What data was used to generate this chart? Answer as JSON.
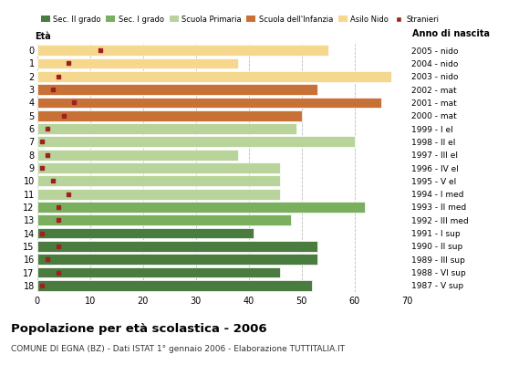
{
  "ages": [
    0,
    1,
    2,
    3,
    4,
    5,
    6,
    7,
    8,
    9,
    10,
    11,
    12,
    13,
    14,
    15,
    16,
    17,
    18
  ],
  "bar_values": [
    55,
    38,
    67,
    53,
    65,
    50,
    49,
    60,
    38,
    46,
    46,
    46,
    62,
    48,
    41,
    53,
    53,
    46,
    52
  ],
  "stranieri_values": [
    12,
    6,
    4,
    3,
    7,
    5,
    2,
    1,
    2,
    1,
    3,
    6,
    4,
    4,
    1,
    4,
    2,
    4,
    1
  ],
  "bar_colors": [
    "#f5d78e",
    "#f5d78e",
    "#f5d78e",
    "#c87137",
    "#c87137",
    "#c87137",
    "#b8d49a",
    "#b8d49a",
    "#b8d49a",
    "#b8d49a",
    "#b8d49a",
    "#b8d49a",
    "#7aaf5e",
    "#7aaf5e",
    "#4a7c3f",
    "#4a7c3f",
    "#4a7c3f",
    "#4a7c3f",
    "#4a7c3f"
  ],
  "anno_nascita": [
    "2005 - nido",
    "2004 - nido",
    "2003 - nido",
    "2002 - mat",
    "2001 - mat",
    "2000 - mat",
    "1999 - I el",
    "1998 - II el",
    "1997 - III el",
    "1996 - IV el",
    "1995 - V el",
    "1994 - I med",
    "1993 - II med",
    "1992 - III med",
    "1991 - I sup",
    "1990 - II sup",
    "1989 - III sup",
    "1988 - VI sup",
    "1987 - V sup"
  ],
  "legend_labels": [
    "Sec. II grado",
    "Sec. I grado",
    "Scuola Primaria",
    "Scuola dell'Infanzia",
    "Asilo Nido",
    "Stranieri"
  ],
  "legend_colors": [
    "#4a7c3f",
    "#7aaf5e",
    "#b8d49a",
    "#c87137",
    "#f5d78e",
    "#a02020"
  ],
  "title": "Popolazione per età scolastica - 2006",
  "subtitle": "COMUNE DI EGNA (BZ) - Dati ISTAT 1° gennaio 2006 - Elaborazione TUTTITALIA.IT",
  "xlabel_eta": "Età",
  "xlabel_anno": "Anno di nascita",
  "xlim": [
    0,
    70
  ],
  "xticks": [
    0,
    10,
    20,
    30,
    40,
    50,
    60,
    70
  ],
  "stranieri_color": "#a02020",
  "background_color": "#ffffff",
  "grid_color": "#bbbbbb"
}
